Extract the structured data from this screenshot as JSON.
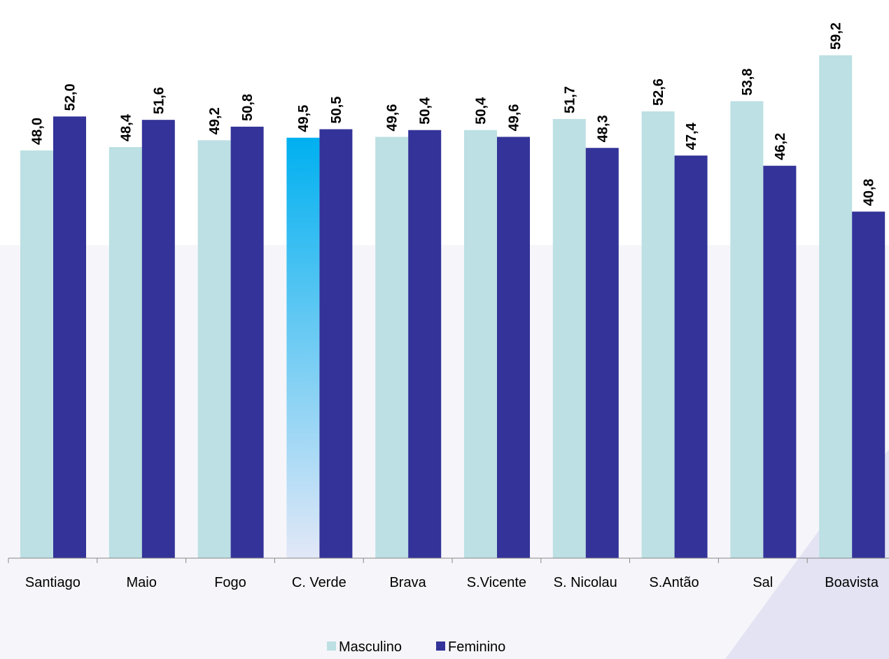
{
  "chart_data": {
    "type": "bar",
    "title": "",
    "xlabel": "",
    "ylabel": "",
    "ylim": [
      0,
      60
    ],
    "grid": false,
    "legend_position": "bottom",
    "categories": [
      "Santiago",
      "Maio",
      "Fogo",
      "C. Verde",
      "Brava",
      "S.Vicente",
      "S. Nicolau",
      "S.Antão",
      "Sal",
      "Boavista"
    ],
    "series": [
      {
        "name": "Masculino",
        "color": "#bce0e3",
        "values": [
          48.0,
          48.4,
          49.2,
          49.5,
          49.6,
          50.4,
          51.7,
          52.6,
          53.8,
          59.2
        ],
        "labels": [
          "48,0",
          "48,4",
          "49,2",
          "49,5",
          "49,6",
          "50,4",
          "51,7",
          "52,6",
          "53,8",
          "59,2"
        ]
      },
      {
        "name": "Feminino",
        "color": "#333399",
        "values": [
          52.0,
          51.6,
          50.8,
          50.5,
          50.4,
          49.6,
          48.3,
          47.4,
          46.2,
          40.8
        ],
        "labels": [
          "52,0",
          "51,6",
          "50,8",
          "50,5",
          "50,4",
          "49,6",
          "48,3",
          "47,4",
          "46,2",
          "40,8"
        ]
      }
    ],
    "highlight": {
      "category": "C. Verde",
      "series": "Masculino",
      "gradient_top": "#00b0f0",
      "gradient_bottom": "#e2e8f7"
    }
  }
}
